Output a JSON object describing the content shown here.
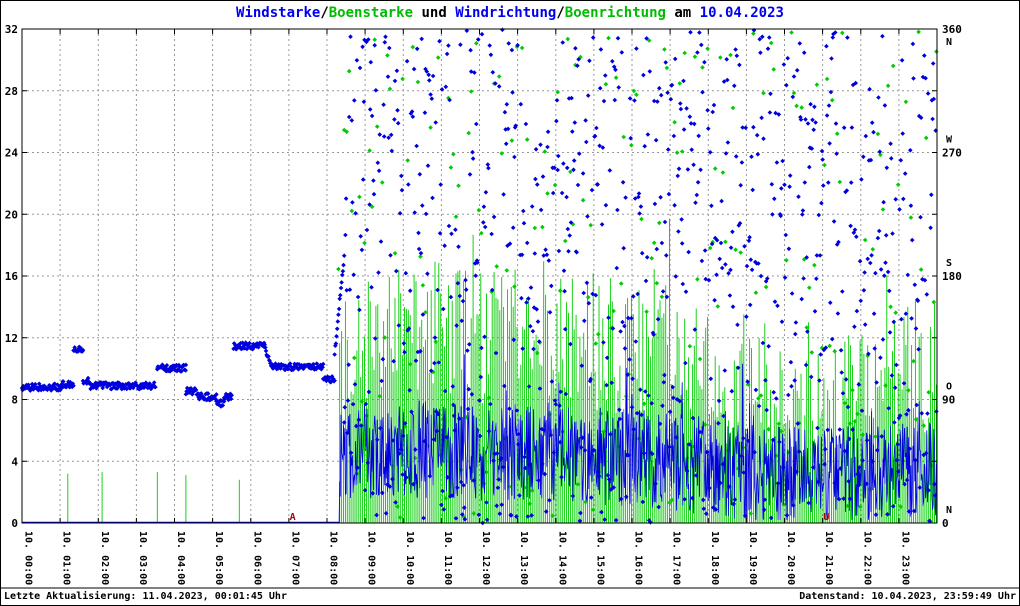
{
  "title": {
    "parts": [
      {
        "text": "Windstarke",
        "color": "#0000ee"
      },
      {
        "text": "/",
        "color": "#000000"
      },
      {
        "text": "Boenstarke",
        "color": "#00bb00"
      },
      {
        "text": " und ",
        "color": "#000000"
      },
      {
        "text": "Windrichtung",
        "color": "#0000ee"
      },
      {
        "text": "/",
        "color": "#000000"
      },
      {
        "text": "Boenrichtung",
        "color": "#00bb00"
      },
      {
        "text": " am ",
        "color": "#000000"
      },
      {
        "text": "10.04.2023",
        "color": "#0000ee"
      }
    ]
  },
  "footer": {
    "left": "Letzte Aktualisierung: 11.04.2023, 00:01:45 Uhr",
    "right": "Datenstand: 10.04.2023, 23:59:49 Uhr"
  },
  "chart_data": {
    "type": "mixed",
    "title": "Windstarke/Boenstarke und Windrichtung/Boenrichtung am 10.04.2023",
    "date": "10.04.2023",
    "x_axis": {
      "range_hours": [
        0,
        24
      ],
      "gridline_every_hours": 1,
      "tick_labels": [
        "10. 00:00",
        "10. 01:00",
        "10. 02:00",
        "10. 03:00",
        "10. 04:00",
        "10. 05:00",
        "10. 06:00",
        "10. 07:00",
        "10. 08:00",
        "10. 09:00",
        "10. 10:00",
        "10. 11:00",
        "10. 12:00",
        "10. 13:00",
        "10. 14:00",
        "10. 15:00",
        "10. 16:00",
        "10. 17:00",
        "10. 18:00",
        "10. 19:00",
        "10. 20:00",
        "10. 21:00",
        "10. 22:00",
        "10. 23:00"
      ]
    },
    "y_axis_left": {
      "label": "Windstarke / Boenstarke",
      "range": [
        0,
        32
      ],
      "ticks": [
        0,
        4,
        8,
        12,
        16,
        20,
        24,
        28,
        32
      ]
    },
    "y_axis_right": {
      "label": "Windrichtung / Boenrichtung",
      "range_deg": [
        0,
        360
      ],
      "ticks": [
        {
          "value": 0,
          "compass": "N"
        },
        {
          "value": 90,
          "compass": "O"
        },
        {
          "value": 180,
          "compass": "S"
        },
        {
          "value": 270,
          "compass": "W"
        },
        {
          "value": 360,
          "compass": "N"
        }
      ]
    },
    "annotations": [
      {
        "text": "A",
        "hour": 7.1,
        "color": "#b00000"
      },
      {
        "text": "U",
        "hour": 21.1,
        "color": "#b00000"
      }
    ],
    "series": {
      "windstaerke": {
        "label": "Windstarke",
        "color": "#0000dd",
        "axis": "left",
        "style": "line",
        "calm_until_hour": 8.33,
        "calm_value": 0.05,
        "noisy": {
          "from_hour": 8.33,
          "to_hour": 24,
          "step_minutes": 1,
          "start_hour": 8,
          "hourly_mean": [
            3.5,
            4.6,
            4.9,
            4.7,
            4.6,
            4.7,
            4.6,
            4.4,
            4.2,
            4.0,
            3.6,
            3.3,
            3.0,
            3.1,
            3.3,
            3.6
          ],
          "noise_amplitude": 3.2,
          "spike_chance": 0.05,
          "spike_extra_max": 4.5,
          "max_value": 12.5
        }
      },
      "boenstaerke": {
        "label": "Boenstarke",
        "color": "#00cc00",
        "axis": "left",
        "style": "impulses",
        "early_spikes": [
          {
            "hour": 1.2,
            "value": 3.2
          },
          {
            "hour": 2.1,
            "value": 3.3
          },
          {
            "hour": 3.55,
            "value": 3.3
          },
          {
            "hour": 4.3,
            "value": 3.1
          },
          {
            "hour": 5.7,
            "value": 2.8
          }
        ],
        "noisy": {
          "from_hour": 8.33,
          "to_hour": 24,
          "step_minutes": 3,
          "start_hour": 8,
          "hourly_mean": [
            10,
            12,
            13,
            12.5,
            12,
            12.5,
            12,
            11.5,
            11,
            10.5,
            9.5,
            8.5,
            7,
            8,
            9,
            10
          ],
          "hourly_max": [
            19,
            22,
            23,
            21,
            21,
            22,
            21,
            20,
            20,
            19,
            17,
            16,
            13,
            15,
            16,
            18
          ],
          "min_value": 2,
          "noise_amplitude": 4.5,
          "tall_chance": 0.05,
          "tall_extra_max": 8
        }
      },
      "windrichtung": {
        "label": "Windrichtung",
        "color": "#0000dd",
        "axis": "right",
        "style": "diamonds",
        "segment_jitter_deg": 2.5,
        "steady_segments": [
          {
            "from_hour": 0.0,
            "to_hour": 1.05,
            "deg": 99
          },
          {
            "from_hour": 1.05,
            "to_hour": 1.35,
            "deg": 101
          },
          {
            "from_hour": 1.35,
            "to_hour": 1.6,
            "deg": 127
          },
          {
            "from_hour": 1.6,
            "to_hour": 1.75,
            "deg": 104
          },
          {
            "from_hour": 1.75,
            "to_hour": 3.5,
            "deg": 100
          },
          {
            "from_hour": 3.55,
            "to_hour": 4.3,
            "deg": 113
          },
          {
            "from_hour": 4.3,
            "to_hour": 4.6,
            "deg": 96
          },
          {
            "from_hour": 4.6,
            "to_hour": 5.1,
            "deg": 92
          },
          {
            "from_hour": 5.1,
            "to_hour": 5.3,
            "deg": 87
          },
          {
            "from_hour": 5.3,
            "to_hour": 5.5,
            "deg": 92
          },
          {
            "from_hour": 5.55,
            "to_hour": 6.35,
            "deg": 129
          },
          {
            "from_hour": 6.35,
            "to_hour": 6.55,
            "deg": 129,
            "deg_end": 114
          },
          {
            "from_hour": 6.55,
            "to_hour": 7.9,
            "deg": 114
          },
          {
            "from_hour": 7.9,
            "to_hour": 8.2,
            "deg": 105
          },
          {
            "from_hour": 8.2,
            "to_hour": 8.45,
            "deg": 122,
            "deg_end": 195
          }
        ],
        "scatter": {
          "from_hour": 8.45,
          "to_hour": 24,
          "step_minutes": 1,
          "deg_range": [
            0,
            360
          ]
        }
      },
      "boenrichtung": {
        "label": "Boenrichtung",
        "color": "#00cc00",
        "axis": "right",
        "style": "diamonds",
        "early_points": [
          {
            "hour": 1.2,
            "deg": 101
          },
          {
            "hour": 2.1,
            "deg": 100
          },
          {
            "hour": 3.55,
            "deg": 113
          },
          {
            "hour": 4.3,
            "deg": 111
          },
          {
            "hour": 5.7,
            "deg": 128
          },
          {
            "hour": 8.3,
            "deg": 185
          }
        ],
        "scatter": {
          "from_hour": 8.45,
          "to_hour": 24,
          "step_minutes": 4,
          "deg_range": [
            0,
            360
          ]
        }
      }
    },
    "render": {
      "seed": 20230410,
      "grid_color": "#999999",
      "axis_color": "#000000",
      "background": "#ffffff"
    }
  }
}
